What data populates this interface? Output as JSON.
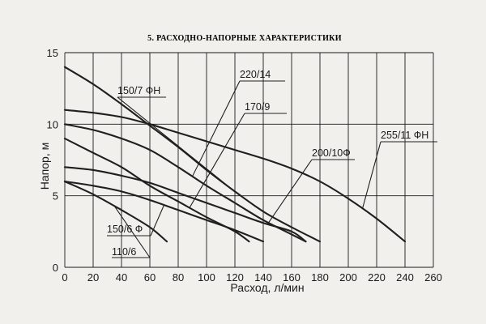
{
  "chart_data": {
    "type": "line",
    "title": "5. РАСХОДНО-НАПОРНЫЕ ХАРАКТЕРИСТИКИ",
    "xlabel": "Расход, л/мин",
    "ylabel": "Напор, м",
    "xlim": [
      0,
      260
    ],
    "ylim": [
      0,
      15
    ],
    "xticks": [
      "0",
      "20",
      "40",
      "60",
      "80",
      "100",
      "120",
      "140",
      "160",
      "180",
      "200",
      "220",
      "240",
      "260"
    ],
    "yticks": [
      "0",
      "5",
      "10",
      "15"
    ],
    "grid": true,
    "series": [
      {
        "name": "150/7 ФН",
        "x": [
          0,
          20,
          40,
          60,
          80,
          100,
          120,
          140,
          160,
          180
        ],
        "y": [
          14,
          12.8,
          11.4,
          9.9,
          8.4,
          6.8,
          5.3,
          3.9,
          2.8,
          1.8
        ]
      },
      {
        "name": "220/14",
        "x": [
          0,
          20,
          40,
          60,
          80,
          100,
          120,
          140,
          160,
          170
        ],
        "y": [
          10,
          9.6,
          9.0,
          8.2,
          7.0,
          5.7,
          4.5,
          3.3,
          2.3,
          1.8
        ]
      },
      {
        "name": "170/9",
        "x": [
          0,
          20,
          40,
          60,
          80,
          100,
          120,
          130
        ],
        "y": [
          9,
          8.0,
          7.0,
          5.7,
          4.6,
          3.5,
          2.5,
          1.8
        ]
      },
      {
        "name": "200/10Ф",
        "x": [
          0,
          20,
          40,
          60,
          80,
          100,
          120,
          140,
          160,
          170
        ],
        "y": [
          7,
          6.8,
          6.4,
          5.9,
          5.2,
          4.5,
          3.8,
          3.1,
          2.5,
          1.8
        ]
      },
      {
        "name": "255/11 ФН",
        "x": [
          0,
          20,
          40,
          60,
          80,
          100,
          120,
          140,
          160,
          180,
          200,
          220,
          240
        ],
        "y": [
          11,
          10.8,
          10.5,
          10.0,
          9.4,
          8.8,
          8.2,
          7.6,
          6.9,
          6.0,
          4.8,
          3.4,
          1.8
        ]
      },
      {
        "name": "150/6 Ф",
        "x": [
          0,
          20,
          40,
          60,
          80,
          100,
          120,
          140
        ],
        "y": [
          6,
          5.7,
          5.3,
          4.7,
          4.0,
          3.3,
          2.6,
          1.8
        ]
      },
      {
        "name": "110/6",
        "x": [
          0,
          20,
          40,
          60,
          72
        ],
        "y": [
          6,
          5.1,
          4.0,
          2.8,
          1.8
        ]
      }
    ]
  }
}
